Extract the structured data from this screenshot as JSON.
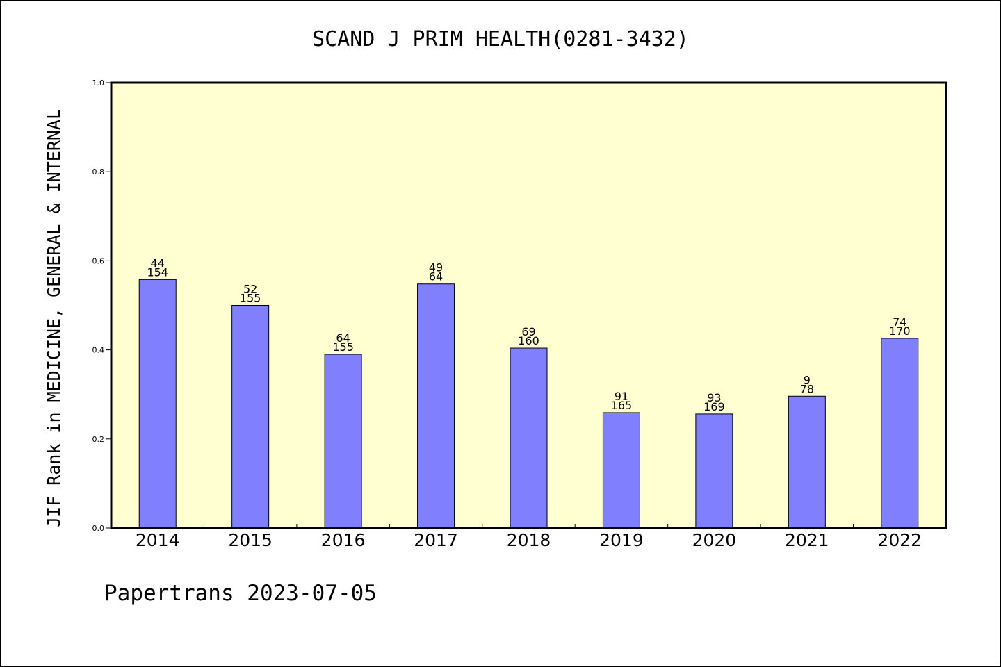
{
  "chart_data": {
    "type": "bar",
    "title": "SCAND J PRIM HEALTH(0281-3432)",
    "ylabel": "JIF Rank in MEDICINE, GENERAL & INTERNAL",
    "xlabel": "",
    "ylim": [
      0,
      1.0
    ],
    "yticks": [
      "0.0",
      "0.2",
      "0.4",
      "0.6",
      "0.8",
      "1.0"
    ],
    "grid": false,
    "categories": [
      "2014",
      "2015",
      "2016",
      "2017",
      "2018",
      "2019",
      "2020",
      "2021",
      "2022"
    ],
    "values": [
      0.558,
      0.5,
      0.39,
      0.548,
      0.404,
      0.259,
      0.256,
      0.296,
      0.426
    ],
    "rank_labels": [
      "44",
      "52",
      "64",
      "49",
      "69",
      "91",
      "93",
      "9",
      "74"
    ],
    "total_labels": [
      "154",
      "155",
      "155",
      "64",
      "160",
      "165",
      "169",
      "78",
      "170"
    ],
    "colors": {
      "plot_background": "#ffffd2",
      "bar_fill": "#8080ff",
      "bar_stroke": "#000000"
    }
  },
  "footer": {
    "text": "Papertrans 2023-07-05"
  }
}
